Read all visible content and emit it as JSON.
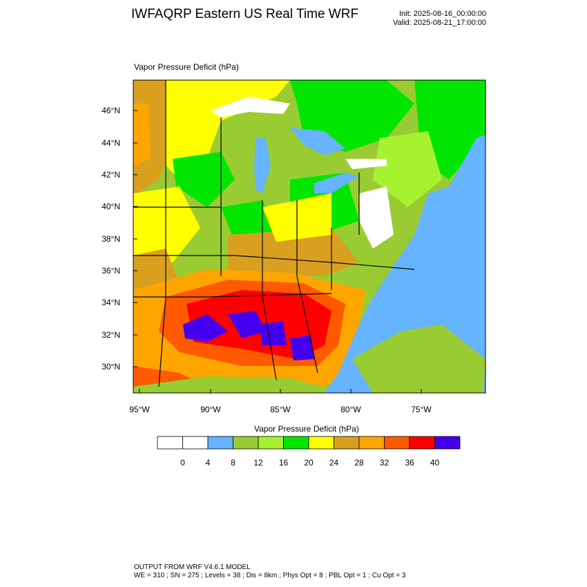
{
  "header": {
    "title": "IWFAQRP Eastern US Real Time WRF",
    "init": "Init: 2025-08-16_00:00:00",
    "valid": "Valid: 2025-08-21_17:00:00"
  },
  "map": {
    "title": "Vapor Pressure Deficit   (hPa)",
    "lat_labels": [
      "46°N",
      "44°N",
      "42°N",
      "40°N",
      "38°N",
      "36°N",
      "34°N",
      "32°N",
      "30°N"
    ],
    "lon_labels": [
      "95°W",
      "90°W",
      "85°W",
      "80°W",
      "75°W"
    ],
    "water_color": "#66b3ff",
    "land_base_color": "#99cc33"
  },
  "colorbar": {
    "title": "Vapor Pressure Deficit  (hPa)",
    "labels": [
      "0",
      "4",
      "8",
      "12",
      "16",
      "20",
      "24",
      "28",
      "32",
      "36",
      "40"
    ],
    "colors": [
      "#ffffff",
      "#ffffff",
      "#66b3ff",
      "#99cc33",
      "#a6f230",
      "#00e600",
      "#ffff00",
      "#d9a020",
      "#ffa500",
      "#ff5a00",
      "#ff0000",
      "#4400ee"
    ]
  },
  "footer": {
    "line1": "OUTPUT FROM WRF V4.6.1 MODEL",
    "line2": "WE = 310 ; SN = 275 ; Levels = 38 ; Dis = 8km ; Phys Opt = 8 ; PBL Opt = 1 ; Cu Opt = 3"
  }
}
